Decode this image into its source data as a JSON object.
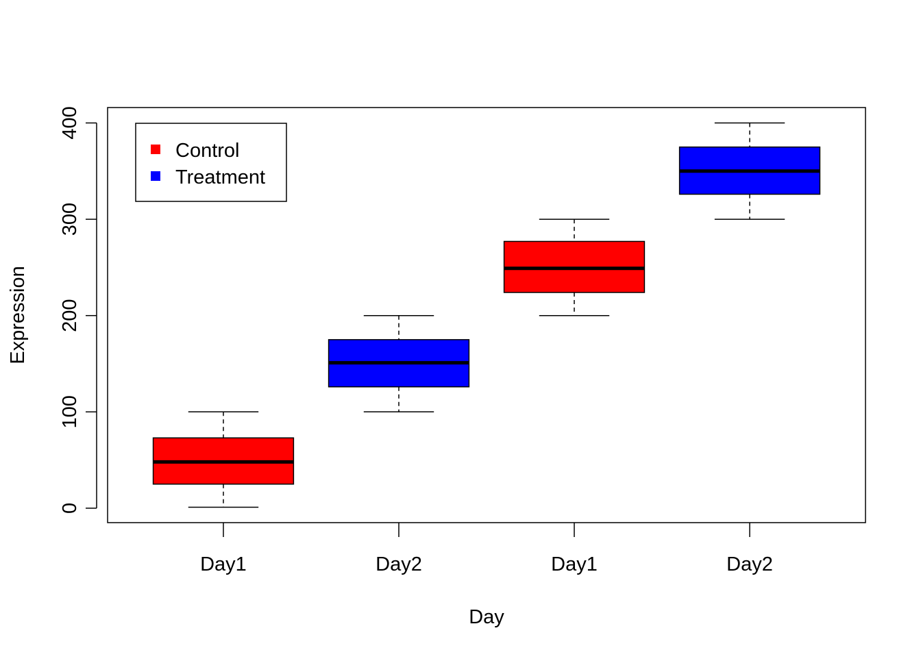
{
  "chart_data": {
    "type": "boxplot",
    "title": "",
    "xlabel": "Day",
    "ylabel": "Expression",
    "ylim": [
      -15,
      416
    ],
    "yticks": [
      0,
      100,
      200,
      300,
      400
    ],
    "grid": false,
    "legend": {
      "position": "top-left",
      "entries": [
        {
          "label": "Control",
          "color": "#ff0000"
        },
        {
          "label": "Treatment",
          "color": "#0000ff"
        }
      ]
    },
    "boxes": [
      {
        "label": "Day1",
        "group": "Control",
        "color": "#ff0000",
        "min": 1,
        "q1": 25,
        "median": 48,
        "q3": 73,
        "max": 100
      },
      {
        "label": "Day2",
        "group": "Treatment",
        "color": "#0000ff",
        "min": 100,
        "q1": 126,
        "median": 151,
        "q3": 175,
        "max": 200
      },
      {
        "label": "Day1",
        "group": "Control",
        "color": "#ff0000",
        "min": 200,
        "q1": 224,
        "median": 249,
        "q3": 277,
        "max": 300
      },
      {
        "label": "Day2",
        "group": "Treatment",
        "color": "#0000ff",
        "min": 300,
        "q1": 326,
        "median": 350,
        "q3": 375,
        "max": 400
      }
    ]
  }
}
